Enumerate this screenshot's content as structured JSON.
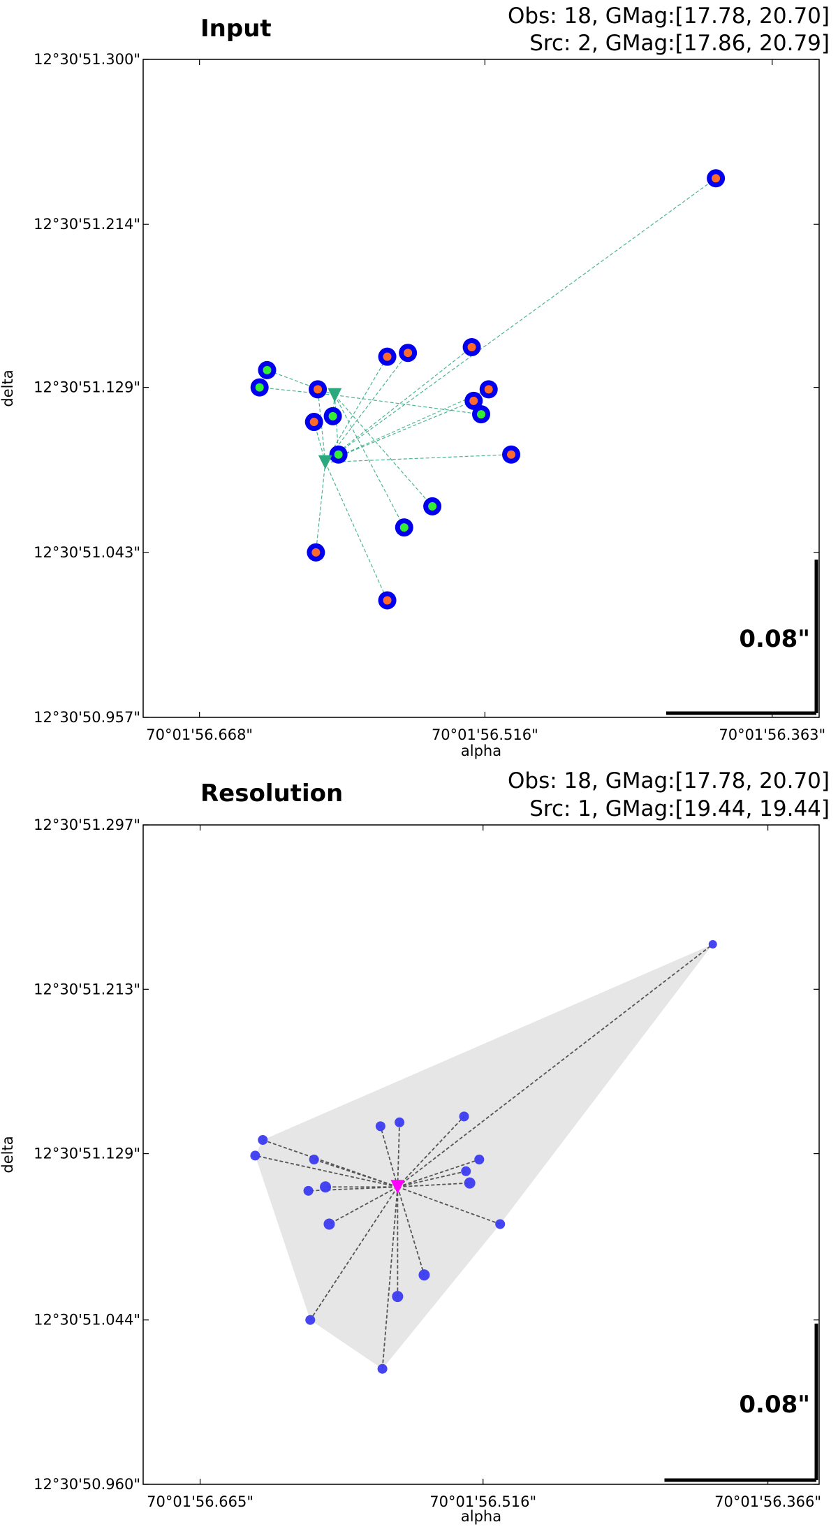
{
  "chart_data": [
    {
      "type": "scatter",
      "title": "Input",
      "info_lines": [
        "Obs: 18, GMag:[17.78, 20.70]",
        "Src: 2, GMag:[17.86, 20.79]"
      ],
      "xlabel": "alpha",
      "ylabel": "delta",
      "xticks": [
        {
          "value": 0,
          "label": "70°01'56.668\""
        },
        {
          "value": 0.152,
          "label": "70°01'56.516\""
        },
        {
          "value": 0.305,
          "label": "70°01'56.363\""
        }
      ],
      "yticks": [
        {
          "value": 0,
          "label": "12°30'50.957\""
        },
        {
          "value": 0.086,
          "label": "12°30'51.043\""
        },
        {
          "value": 0.172,
          "label": "12°30'51.129\""
        },
        {
          "value": 0.257,
          "label": "12°30'51.214\""
        },
        {
          "value": 0.343,
          "label": "12°30'51.300\""
        }
      ],
      "xlim": [
        -0.03,
        0.33
      ],
      "ylim": [
        0,
        0.343
      ],
      "scale_bar": {
        "length": 0.08,
        "label": "0.08\""
      },
      "observations": [
        {
          "x": 0.275,
          "y": 0.281,
          "src": 0
        },
        {
          "x": 0.036,
          "y": 0.181,
          "src": 1
        },
        {
          "x": 0.032,
          "y": 0.172,
          "src": 1
        },
        {
          "x": 0.063,
          "y": 0.171,
          "src": 0
        },
        {
          "x": 0.1,
          "y": 0.188,
          "src": 0
        },
        {
          "x": 0.111,
          "y": 0.19,
          "src": 0
        },
        {
          "x": 0.145,
          "y": 0.193,
          "src": 0
        },
        {
          "x": 0.154,
          "y": 0.171,
          "src": 0
        },
        {
          "x": 0.146,
          "y": 0.165,
          "src": 0
        },
        {
          "x": 0.15,
          "y": 0.158,
          "src": 1
        },
        {
          "x": 0.061,
          "y": 0.154,
          "src": 0
        },
        {
          "x": 0.071,
          "y": 0.157,
          "src": 1
        },
        {
          "x": 0.074,
          "y": 0.137,
          "src": 1
        },
        {
          "x": 0.166,
          "y": 0.137,
          "src": 0
        },
        {
          "x": 0.124,
          "y": 0.11,
          "src": 1
        },
        {
          "x": 0.109,
          "y": 0.099,
          "src": 1
        },
        {
          "x": 0.062,
          "y": 0.086,
          "src": 0
        },
        {
          "x": 0.1,
          "y": 0.061,
          "src": 0
        }
      ],
      "sources": [
        {
          "x": 0.067,
          "y": 0.133,
          "color": "#2ca87f"
        },
        {
          "x": 0.072,
          "y": 0.168,
          "color": "#2ca87f"
        }
      ],
      "link_color": "#2ca87f",
      "colors": {
        "marker_outer": "#0000ee",
        "src0_inner": "#ff6a2a",
        "src1_inner": "#33ee33"
      }
    },
    {
      "type": "scatter",
      "title": "Resolution",
      "info_lines": [
        "Obs: 18, GMag:[17.78, 20.70]",
        "Src: 1, GMag:[19.44, 19.44]"
      ],
      "xlabel": "alpha",
      "ylabel": "delta",
      "xticks": [
        {
          "value": 0,
          "label": "70°01'56.665\""
        },
        {
          "value": 0.149,
          "label": "70°01'56.516\""
        },
        {
          "value": 0.299,
          "label": "70°01'56.366\""
        }
      ],
      "yticks": [
        {
          "value": 0,
          "label": "12°30'50.960\""
        },
        {
          "value": 0.084,
          "label": "12°30'51.044\""
        },
        {
          "value": 0.169,
          "label": "12°30'51.129\""
        },
        {
          "value": 0.253,
          "label": "12°30'51.213\""
        },
        {
          "value": 0.337,
          "label": "12°30'51.297\""
        }
      ],
      "xlim": [
        -0.03,
        0.326
      ],
      "ylim": [
        0,
        0.337
      ],
      "scale_bar": {
        "length": 0.08,
        "label": "0.08\""
      },
      "observations": [
        {
          "x": 0.27,
          "y": 0.276,
          "r": 4
        },
        {
          "x": 0.033,
          "y": 0.176,
          "r": 5
        },
        {
          "x": 0.029,
          "y": 0.168,
          "r": 5
        },
        {
          "x": 0.06,
          "y": 0.166,
          "r": 5
        },
        {
          "x": 0.095,
          "y": 0.183,
          "r": 5
        },
        {
          "x": 0.105,
          "y": 0.185,
          "r": 5
        },
        {
          "x": 0.139,
          "y": 0.188,
          "r": 5
        },
        {
          "x": 0.147,
          "y": 0.166,
          "r": 5
        },
        {
          "x": 0.14,
          "y": 0.16,
          "r": 5
        },
        {
          "x": 0.142,
          "y": 0.154,
          "r": 6
        },
        {
          "x": 0.057,
          "y": 0.15,
          "r": 5
        },
        {
          "x": 0.066,
          "y": 0.152,
          "r": 6
        },
        {
          "x": 0.068,
          "y": 0.133,
          "r": 6
        },
        {
          "x": 0.158,
          "y": 0.133,
          "r": 5
        },
        {
          "x": 0.118,
          "y": 0.107,
          "r": 6
        },
        {
          "x": 0.104,
          "y": 0.096,
          "r": 6
        },
        {
          "x": 0.058,
          "y": 0.084,
          "r": 5
        },
        {
          "x": 0.096,
          "y": 0.059,
          "r": 5
        }
      ],
      "sources": [
        {
          "x": 0.104,
          "y": 0.152,
          "color": "#ff00ff"
        }
      ],
      "hull": [
        [
          0.27,
          0.276
        ],
        [
          0.033,
          0.176
        ],
        [
          0.029,
          0.168
        ],
        [
          0.058,
          0.084
        ],
        [
          0.096,
          0.059
        ],
        [
          0.158,
          0.133
        ]
      ],
      "hull_color": "#e6e6e6",
      "link_color": "#555555",
      "colors": {
        "marker": "#3b3bf0"
      }
    }
  ]
}
